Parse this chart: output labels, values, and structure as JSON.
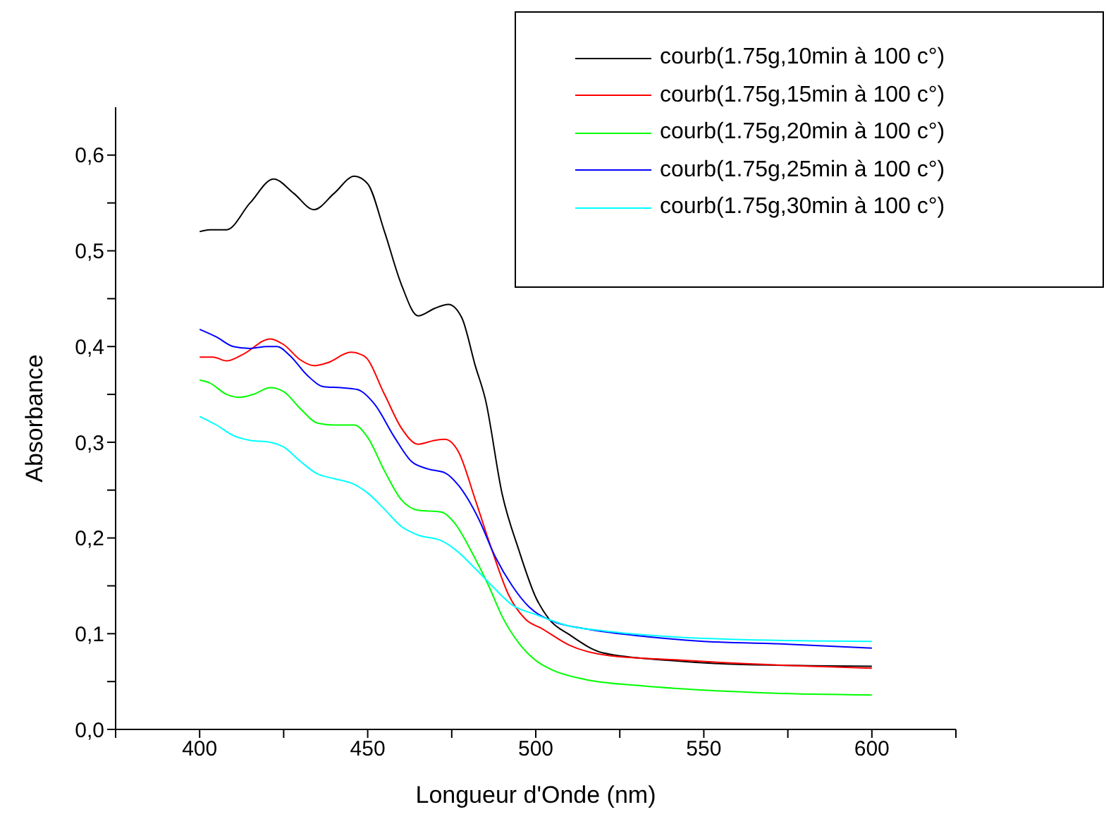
{
  "chart_data": {
    "type": "line",
    "xlabel": "Longueur d'Onde (nm)",
    "ylabel": "Absorbance",
    "xlim": [
      375,
      625
    ],
    "ylim": [
      0,
      0.65
    ],
    "xticks": [
      {
        "value": 375,
        "label": null
      },
      400,
      {
        "value": 425,
        "label": null
      },
      450,
      {
        "value": 475,
        "label": null
      },
      500,
      {
        "value": 525,
        "label": null
      },
      550,
      {
        "value": 575,
        "label": null
      },
      600,
      {
        "value": 625,
        "label": null
      }
    ],
    "yticks": [
      {
        "value": 0,
        "label": "0,0"
      },
      {
        "value": 0.05,
        "label": null
      },
      {
        "value": 0.1,
        "label": "0,1"
      },
      {
        "value": 0.15,
        "label": null
      },
      {
        "value": 0.2,
        "label": "0,2"
      },
      {
        "value": 0.25,
        "label": null
      },
      {
        "value": 0.3,
        "label": "0,3"
      },
      {
        "value": 0.35,
        "label": null
      },
      {
        "value": 0.4,
        "label": "0,4"
      },
      {
        "value": 0.45,
        "label": null
      },
      {
        "value": 0.5,
        "label": "0,5"
      },
      {
        "value": 0.55,
        "label": null
      },
      {
        "value": 0.6,
        "label": "0,6"
      }
    ],
    "grid": false,
    "legend": "top right",
    "line_style": "solid",
    "series": [
      {
        "name": "courb(1.75g,10min à 100 c°)",
        "color": "#000000",
        "x": [
          400,
          403,
          408,
          415,
          422,
          428,
          434,
          440,
          446,
          450,
          455,
          460,
          465,
          470,
          474,
          478,
          482,
          485,
          490,
          495,
          500,
          504,
          510,
          520,
          540,
          560,
          600
        ],
        "values": [
          0.52,
          0.522,
          0.522,
          0.55,
          0.575,
          0.56,
          0.543,
          0.56,
          0.578,
          0.57,
          0.52,
          0.465,
          0.432,
          0.44,
          0.444,
          0.43,
          0.38,
          0.345,
          0.246,
          0.187,
          0.138,
          0.115,
          0.099,
          0.08,
          0.072,
          0.068,
          0.066
        ]
      },
      {
        "name": "courb(1.75g,15min à 100 c°)",
        "color": "#ff0000",
        "x": [
          400,
          404,
          408,
          413,
          421,
          425,
          430,
          434,
          438,
          445,
          449,
          455,
          460,
          465,
          470,
          473,
          477,
          482,
          487,
          492,
          497,
          502,
          510,
          522,
          540,
          560,
          600
        ],
        "values": [
          0.389,
          0.389,
          0.385,
          0.392,
          0.408,
          0.402,
          0.386,
          0.38,
          0.383,
          0.394,
          0.39,
          0.35,
          0.315,
          0.298,
          0.302,
          0.303,
          0.29,
          0.24,
          0.187,
          0.14,
          0.115,
          0.105,
          0.088,
          0.077,
          0.073,
          0.069,
          0.064
        ]
      },
      {
        "name": "courb(1.75g,20min à 100 c°)",
        "color": "#00ff00",
        "x": [
          400,
          403,
          408,
          412,
          416,
          421,
          425,
          430,
          435,
          440,
          446,
          450,
          455,
          460,
          465,
          472,
          476,
          481,
          486,
          490,
          495,
          500,
          505,
          515,
          530,
          550,
          570,
          600
        ],
        "values": [
          0.365,
          0.362,
          0.35,
          0.347,
          0.35,
          0.357,
          0.353,
          0.335,
          0.32,
          0.318,
          0.318,
          0.305,
          0.27,
          0.24,
          0.229,
          0.227,
          0.215,
          0.185,
          0.15,
          0.118,
          0.09,
          0.072,
          0.062,
          0.052,
          0.046,
          0.041,
          0.038,
          0.036
        ]
      },
      {
        "name": "courb(1.75g,25min à 100 c°)",
        "color": "#0000ff",
        "x": [
          400,
          405,
          410,
          415,
          420,
          423,
          427,
          432,
          437,
          442,
          447,
          452,
          458,
          463,
          468,
          473,
          477,
          483,
          488,
          493,
          498,
          505,
          515,
          530,
          550,
          575,
          600
        ],
        "values": [
          0.418,
          0.41,
          0.4,
          0.398,
          0.4,
          0.4,
          0.39,
          0.37,
          0.358,
          0.357,
          0.355,
          0.34,
          0.305,
          0.28,
          0.272,
          0.268,
          0.255,
          0.22,
          0.18,
          0.15,
          0.128,
          0.113,
          0.105,
          0.098,
          0.092,
          0.089,
          0.085
        ]
      },
      {
        "name": "courb(1.75g,30min à 100 c°)",
        "color": "#00ffff",
        "x": [
          400,
          405,
          410,
          415,
          421,
          425,
          430,
          435,
          440,
          446,
          450,
          455,
          460,
          465,
          472,
          476,
          482,
          487,
          493,
          500,
          510,
          520,
          540,
          560,
          600
        ],
        "values": [
          0.327,
          0.318,
          0.307,
          0.302,
          0.3,
          0.295,
          0.28,
          0.267,
          0.262,
          0.256,
          0.247,
          0.23,
          0.212,
          0.203,
          0.197,
          0.188,
          0.168,
          0.15,
          0.13,
          0.12,
          0.108,
          0.103,
          0.097,
          0.094,
          0.092
        ]
      }
    ]
  }
}
